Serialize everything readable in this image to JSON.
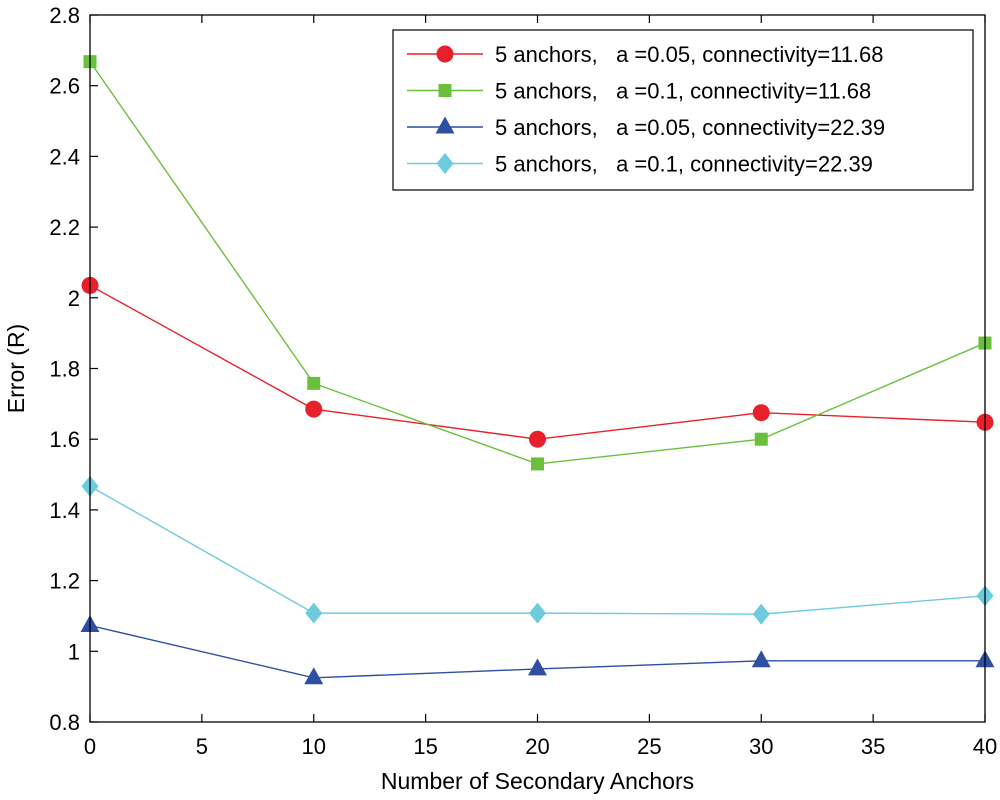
{
  "chart_data": {
    "type": "line",
    "title": "",
    "xlabel": "Number of Secondary Anchors",
    "ylabel": "Error (R)",
    "xlim": [
      0,
      40
    ],
    "ylim": [
      0.8,
      2.8
    ],
    "xticks": [
      0,
      5,
      10,
      15,
      20,
      25,
      30,
      35,
      40
    ],
    "xtick_labels": [
      "0",
      "5",
      "10",
      "15",
      "20",
      "25",
      "30",
      "35",
      "40"
    ],
    "yticks": [
      0.8,
      1.0,
      1.2,
      1.4,
      1.6,
      1.8,
      2.0,
      2.2,
      2.4,
      2.6,
      2.8
    ],
    "ytick_labels": [
      "0.8",
      "1",
      "1.2",
      "1.4",
      "1.6",
      "1.8",
      "2",
      "2.2",
      "2.4",
      "2.6",
      "2.8"
    ],
    "grid": false,
    "legend_position": "top-right",
    "x": [
      0,
      10,
      20,
      30,
      40
    ],
    "series": [
      {
        "name": "5 anchors,   a =0.05, connectivity=11.68",
        "values": [
          2.035,
          1.685,
          1.6,
          1.675,
          1.648
        ],
        "color": "#e8202a",
        "marker": "circle"
      },
      {
        "name": "5 anchors,   a =0.1, connectivity=11.68",
        "values": [
          2.668,
          1.758,
          1.53,
          1.6,
          1.872
        ],
        "color": "#6abf3c",
        "marker": "square"
      },
      {
        "name": "5 anchors,   a =0.05, connectivity=22.39",
        "values": [
          1.073,
          0.925,
          0.95,
          0.973,
          0.973
        ],
        "color": "#2f4fa2",
        "marker": "triangle"
      },
      {
        "name": "5 anchors,   a =0.1, connectivity=22.39",
        "values": [
          1.467,
          1.108,
          1.108,
          1.105,
          1.157
        ],
        "color": "#6ccbdc",
        "marker": "diamond"
      }
    ]
  }
}
